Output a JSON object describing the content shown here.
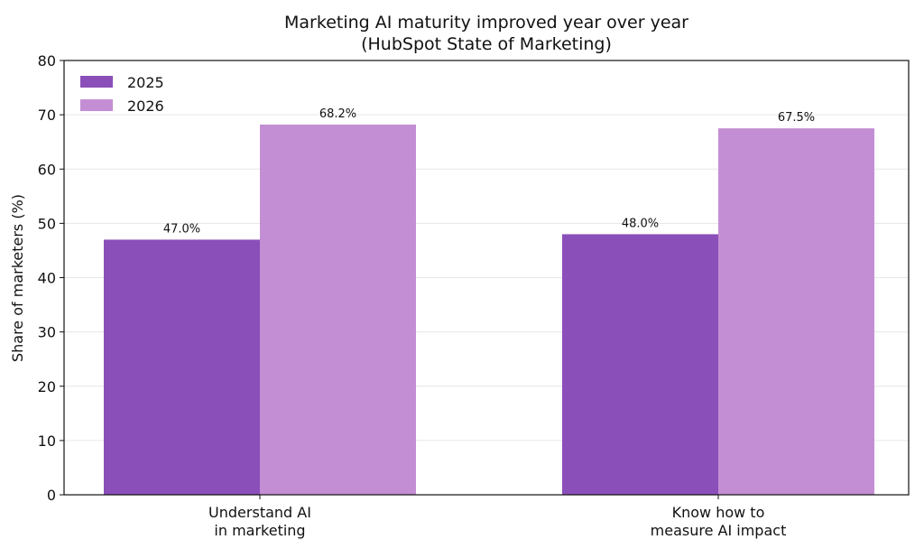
{
  "chart_data": {
    "type": "bar",
    "title": "Marketing AI maturity improved year over year",
    "subtitle": "(HubSpot State of Marketing)",
    "xlabel": "",
    "ylabel": "Share of marketers (%)",
    "ylim": [
      0,
      80
    ],
    "yticks": [
      "0",
      "10",
      "20",
      "30",
      "40",
      "50",
      "60",
      "70",
      "80"
    ],
    "grid": "horizontal",
    "legend_position": "top-left",
    "categories": [
      [
        "Understand AI",
        "in marketing"
      ],
      [
        "Know how to",
        "measure AI impact"
      ]
    ],
    "series": [
      {
        "name": "2025",
        "color": "#8b4fb9",
        "values": [
          47.0,
          48.0
        ],
        "labels": [
          "47.0%",
          "48.0%"
        ]
      },
      {
        "name": "2026",
        "color": "#c48ed4",
        "values": [
          68.2,
          67.5
        ],
        "labels": [
          "68.2%",
          "67.5%"
        ]
      }
    ]
  }
}
